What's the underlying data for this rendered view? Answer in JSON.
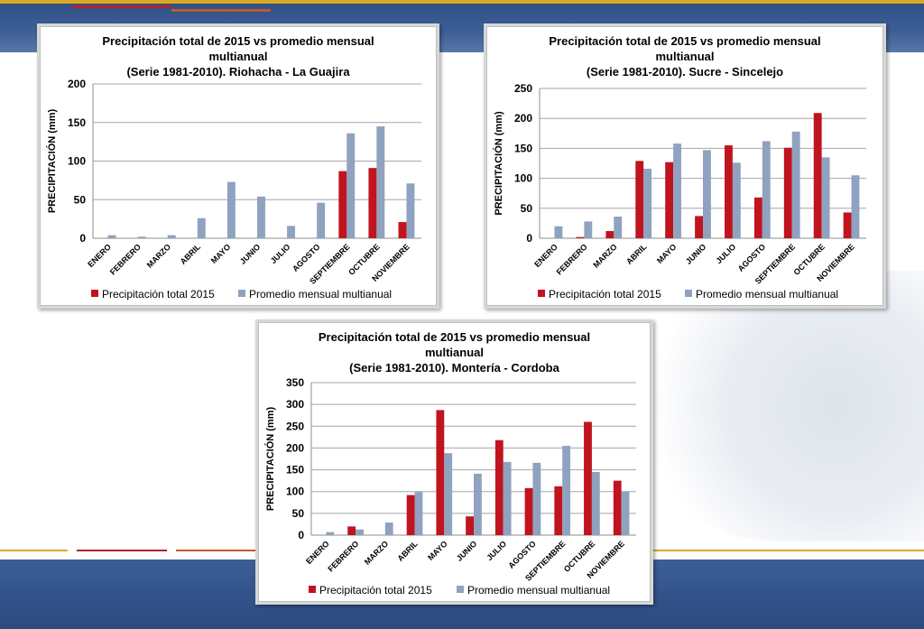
{
  "colors": {
    "series_2015": "#c0141f",
    "series_avg": "#8fa2bf",
    "grid": "#a6a6a6",
    "band": "#2d4f86"
  },
  "chart_data": [
    {
      "type": "bar",
      "title_lines": [
        "Precipitación total de 2015 vs promedio mensual",
        "multianual",
        "(Serie 1981-2010). Riohacha - La Guajira"
      ],
      "ylabel": "PRECIPITACIÓN (mm)",
      "xlabel": "",
      "ylim": [
        0,
        200
      ],
      "yticks": [
        0,
        50,
        100,
        150,
        200
      ],
      "grid": true,
      "legend_position": "bottom",
      "categories": [
        "ENERO",
        "FEBRERO",
        "MARZO",
        "ABRIL",
        "MAYO",
        "JUNIO",
        "JULIO",
        "AGOSTO",
        "SEPTIEMBRE",
        "OCTUBRE",
        "NOVIEMBRE"
      ],
      "series": [
        {
          "name": "Precipitación total 2015",
          "values": [
            0,
            0,
            0,
            0,
            0,
            0,
            0,
            0,
            87,
            91,
            21
          ]
        },
        {
          "name": "Promedio mensual multianual",
          "values": [
            4,
            2,
            4,
            26,
            73,
            54,
            16,
            46,
            136,
            145,
            71
          ]
        }
      ]
    },
    {
      "type": "bar",
      "title_lines": [
        "Precipitación total de 2015 vs promedio mensual",
        "multianual",
        "(Serie 1981-2010). Sucre - Sincelejo"
      ],
      "ylabel": "PRECIPITACIÓN (mm)",
      "xlabel": "",
      "ylim": [
        0,
        250
      ],
      "yticks": [
        0,
        50,
        100,
        150,
        200,
        250
      ],
      "grid": true,
      "legend_position": "bottom",
      "categories": [
        "ENERO",
        "FEBRERO",
        "MARZO",
        "ABRIL",
        "MAYO",
        "JUNIO",
        "JULIO",
        "AGOSTO",
        "SEPTIEMBRE",
        "OCTUBRE",
        "NOVIEMBRE"
      ],
      "series": [
        {
          "name": "Precipitación total 2015",
          "values": [
            0,
            2,
            12,
            129,
            127,
            37,
            155,
            68,
            151,
            209,
            43
          ]
        },
        {
          "name": "Promedio mensual multianual",
          "values": [
            20,
            28,
            36,
            116,
            158,
            147,
            126,
            162,
            178,
            135,
            105
          ]
        }
      ]
    },
    {
      "type": "bar",
      "title_lines": [
        "Precipitación total de 2015 vs promedio mensual",
        "multianual",
        "(Serie 1981-2010). Montería - Cordoba"
      ],
      "ylabel": "PRECIPITACIÓN (mm)",
      "xlabel": "",
      "ylim": [
        0,
        350
      ],
      "yticks": [
        0,
        50,
        100,
        150,
        200,
        250,
        300,
        350
      ],
      "grid": true,
      "legend_position": "bottom",
      "categories": [
        "ENERO",
        "FEBRERO",
        "MARZO",
        "ABRIL",
        "MAYO",
        "JUNIO",
        "JULIO",
        "AGOSTO",
        "SEPTIEMBRE",
        "OCTUBRE",
        "NOVIEMBRE"
      ],
      "series": [
        {
          "name": "Precipitación total 2015",
          "values": [
            0,
            20,
            0,
            92,
            287,
            43,
            218,
            108,
            112,
            260,
            125
          ]
        },
        {
          "name": "Promedio mensual multianual",
          "values": [
            7,
            13,
            29,
            99,
            188,
            141,
            168,
            166,
            205,
            145,
            100
          ]
        }
      ]
    }
  ]
}
